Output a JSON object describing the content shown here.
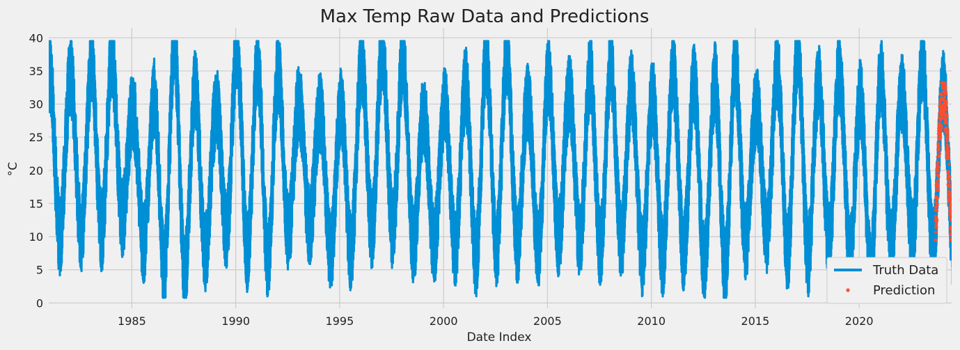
{
  "chart_data": {
    "type": "line",
    "title": "Max Temp Raw Data and Predictions",
    "xlabel": "Date Index",
    "ylabel": "°C",
    "xlim": [
      1981.0,
      2024.45
    ],
    "ylim": [
      -0.8,
      41.5
    ],
    "x_ticks": [
      1985,
      1990,
      1995,
      2000,
      2005,
      2010,
      2015,
      2020
    ],
    "x_tick_labels": [
      "1985",
      "1990",
      "1995",
      "2000",
      "2005",
      "2010",
      "2015",
      "2020"
    ],
    "y_ticks": [
      0,
      5,
      10,
      15,
      20,
      25,
      30,
      35,
      40
    ],
    "y_tick_labels": [
      "0",
      "5",
      "10",
      "15",
      "20",
      "25",
      "30",
      "35",
      "40"
    ],
    "grid": true,
    "legend_position": "bottom-right",
    "series": [
      {
        "name": "Truth Data",
        "style": "line",
        "color": "#008fd5",
        "x_start": "1981-01-01",
        "x_end": "2024-06-30",
        "seasonal_min_range": [
          4,
          13
        ],
        "seasonal_max_range": [
          28,
          39.5
        ],
        "observed_min": 0.8,
        "observed_max": 39.5
      },
      {
        "name": "Prediction",
        "style": "points",
        "color": "#fc4f30",
        "x_start": "2023-09-01",
        "x_end": "2024-06-30",
        "observed_min": 9.5,
        "observed_max": 33.2
      }
    ]
  }
}
